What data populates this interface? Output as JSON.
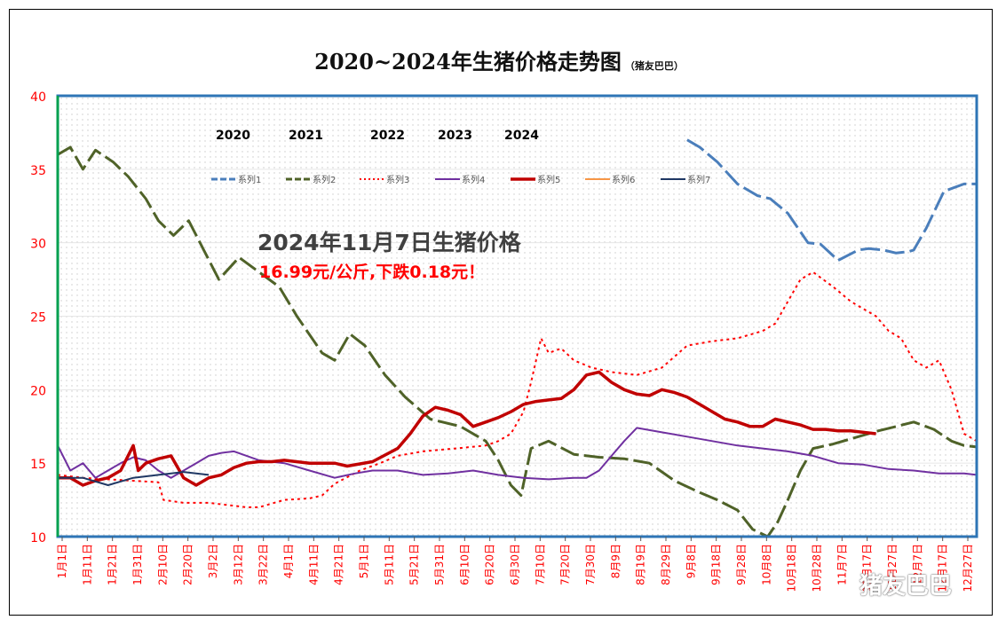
{
  "title": "2020~2024年生猪价格走势图",
  "title_small": "（猪友巴巴）",
  "year_labels": [
    "2020",
    "2021",
    "2022",
    "2023",
    "2024"
  ],
  "annotation_main": "2024年11月7日生猪价格",
  "annotation_sub": "16.99元/公斤,下跌0.18元！",
  "watermark": "猪友巴巴",
  "colors": {
    "plot_border": "#2e75b6",
    "y_axis_line": "#00a050",
    "axis_text": "#ff0000",
    "grid_dots": "#c8c8c8"
  },
  "chart_data": {
    "type": "line",
    "title": "2020~2024年生猪价格走势图",
    "ylim": [
      10,
      40
    ],
    "yticks": [
      10,
      15,
      20,
      25,
      30,
      35,
      40
    ],
    "xlim": [
      0,
      365
    ],
    "x_tick_labels": [
      "1月1日",
      "1月11日",
      "1月21日",
      "1月31日",
      "2月10日",
      "2月20日",
      "3月2日",
      "3月12日",
      "3月22日",
      "4月1日",
      "4月11日",
      "4月21日",
      "5月1日",
      "5月11日",
      "5月21日",
      "5月31日",
      "6月10日",
      "6月20日",
      "6月30日",
      "7月10日",
      "7月20日",
      "7月30日",
      "8月9日",
      "8月19日",
      "8月29日",
      "9月8日",
      "9月18日",
      "9月28日",
      "10月8日",
      "10月18日",
      "10月28日",
      "11月7日",
      "11月17日",
      "11月27日",
      "12月7日",
      "12月17日",
      "12月27日"
    ],
    "legend_position": "top",
    "grid": true,
    "series": [
      {
        "name": "系列1",
        "color": "#4a7ebb",
        "style": "dash",
        "width": 3,
        "x": [
          250,
          255,
          262,
          270,
          278,
          283,
          290,
          298,
          303,
          310,
          318,
          322,
          328,
          333,
          338,
          340,
          345,
          352,
          360,
          365
        ],
        "y": [
          37,
          36.5,
          35.5,
          34,
          33.2,
          33,
          32,
          30,
          29.9,
          28.8,
          29.5,
          29.6,
          29.5,
          29.3,
          29.4,
          29.5,
          31,
          33.5,
          34,
          34
        ]
      },
      {
        "name": "系列2",
        "color": "#4f6228",
        "style": "dash",
        "width": 3,
        "x": [
          0,
          5,
          10,
          15,
          22,
          28,
          35,
          40,
          46,
          52,
          58,
          64,
          72,
          80,
          88,
          95,
          101,
          105,
          110,
          116,
          122,
          130,
          138,
          148,
          160,
          170,
          175,
          180,
          184,
          188,
          195,
          205,
          215,
          225,
          235,
          245,
          255,
          262,
          270,
          276,
          282,
          286,
          290,
          295,
          300,
          308,
          318,
          326,
          333,
          340,
          348,
          355,
          360,
          365
        ],
        "y": [
          36,
          36.5,
          35,
          36.3,
          35.5,
          34.5,
          33,
          31.5,
          30.5,
          31.5,
          29.5,
          27.5,
          29,
          28,
          27,
          25,
          23.5,
          22.5,
          22,
          23.8,
          23,
          21,
          19.5,
          18,
          17.5,
          16.5,
          15.2,
          13.5,
          12.8,
          16,
          16.5,
          15.6,
          15.4,
          15.3,
          15,
          13.8,
          13,
          12.5,
          11.8,
          10.5,
          10,
          11,
          12.5,
          14.5,
          16,
          16.3,
          16.8,
          17.2,
          17.5,
          17.8,
          17.3,
          16.5,
          16.2,
          16.1
        ]
      },
      {
        "name": "系列3",
        "color": "#ff0000",
        "style": "dot",
        "width": 2,
        "x": [
          0,
          10,
          20,
          30,
          40,
          42,
          50,
          60,
          70,
          75,
          80,
          90,
          100,
          105,
          110,
          120,
          128,
          135,
          145,
          158,
          170,
          175,
          180,
          185,
          188,
          192,
          195,
          200,
          205,
          212,
          220,
          230,
          240,
          250,
          260,
          270,
          280,
          285,
          290,
          295,
          300,
          308,
          315,
          320,
          325,
          330,
          335,
          340,
          345,
          350,
          355,
          360,
          365
        ],
        "y": [
          14.2,
          14,
          13.9,
          13.8,
          13.7,
          12.5,
          12.3,
          12.3,
          12.1,
          12,
          12,
          12.5,
          12.6,
          12.8,
          13.6,
          14.5,
          15,
          15.5,
          15.8,
          16,
          16.2,
          16.5,
          17,
          18.5,
          20.5,
          23.5,
          22.5,
          22.8,
          22,
          21.5,
          21.2,
          21,
          21.5,
          23,
          23.3,
          23.5,
          24,
          24.5,
          26,
          27.5,
          28,
          27,
          26,
          25.5,
          25,
          24,
          23.5,
          22,
          21.5,
          22,
          20,
          17,
          16.5
        ]
      },
      {
        "name": "系列4",
        "color": "#7030a0",
        "style": "solid",
        "width": 2,
        "x": [
          0,
          5,
          10,
          15,
          25,
          30,
          35,
          40,
          45,
          50,
          55,
          60,
          65,
          70,
          75,
          80,
          90,
          100,
          110,
          118,
          125,
          135,
          145,
          155,
          165,
          175,
          185,
          195,
          205,
          210,
          215,
          220,
          225,
          230,
          240,
          250,
          260,
          270,
          280,
          290,
          300,
          310,
          320,
          330,
          340,
          350,
          360,
          365
        ],
        "y": [
          16.2,
          14.5,
          15,
          14,
          15,
          15.4,
          15.2,
          14.5,
          14,
          14.5,
          15,
          15.5,
          15.7,
          15.8,
          15.5,
          15.2,
          15,
          14.5,
          14,
          14.3,
          14.5,
          14.5,
          14.2,
          14.3,
          14.5,
          14.2,
          14,
          13.9,
          14,
          14,
          14.5,
          15.5,
          16.5,
          17.4,
          17.1,
          16.8,
          16.5,
          16.2,
          16,
          15.8,
          15.5,
          15,
          14.9,
          14.6,
          14.5,
          14.3,
          14.3,
          14.2
        ]
      },
      {
        "name": "系列5",
        "color": "#c00000",
        "style": "solid",
        "width": 3.5,
        "x": [
          0,
          5,
          10,
          15,
          20,
          25,
          30,
          32,
          35,
          40,
          45,
          50,
          55,
          60,
          65,
          70,
          75,
          80,
          85,
          90,
          100,
          110,
          115,
          125,
          135,
          140,
          145,
          150,
          155,
          160,
          165,
          170,
          175,
          180,
          185,
          190,
          195,
          200,
          205,
          210,
          215,
          220,
          225,
          230,
          235,
          240,
          245,
          250,
          255,
          260,
          265,
          270,
          275,
          280,
          285,
          290,
          295,
          300,
          305,
          310,
          315,
          320,
          325
        ],
        "y": [
          14,
          14,
          13.5,
          13.8,
          14,
          14.5,
          16.2,
          14.5,
          15,
          15.3,
          15.5,
          14,
          13.5,
          14,
          14.2,
          14.7,
          15,
          15.1,
          15.1,
          15.2,
          15,
          15,
          14.8,
          15.1,
          16,
          17,
          18.2,
          18.8,
          18.6,
          18.3,
          17.5,
          17.8,
          18.1,
          18.5,
          19,
          19.2,
          19.3,
          19.4,
          20,
          21,
          21.2,
          20.5,
          20,
          19.7,
          19.6,
          20,
          19.8,
          19.5,
          19,
          18.5,
          18,
          17.8,
          17.5,
          17.5,
          18,
          17.8,
          17.6,
          17.3,
          17.3,
          17.2,
          17.2,
          17.1,
          17
        ]
      },
      {
        "name": "系列6",
        "color": "#f79646",
        "style": "solid",
        "width": 2,
        "x": [],
        "y": []
      },
      {
        "name": "系列7",
        "color": "#1f3864",
        "style": "solid",
        "width": 2,
        "x": [
          0,
          10,
          20,
          30,
          40,
          50,
          60
        ],
        "y": [
          14,
          14,
          13.5,
          14,
          14.2,
          14.4,
          14.2
        ]
      }
    ]
  }
}
